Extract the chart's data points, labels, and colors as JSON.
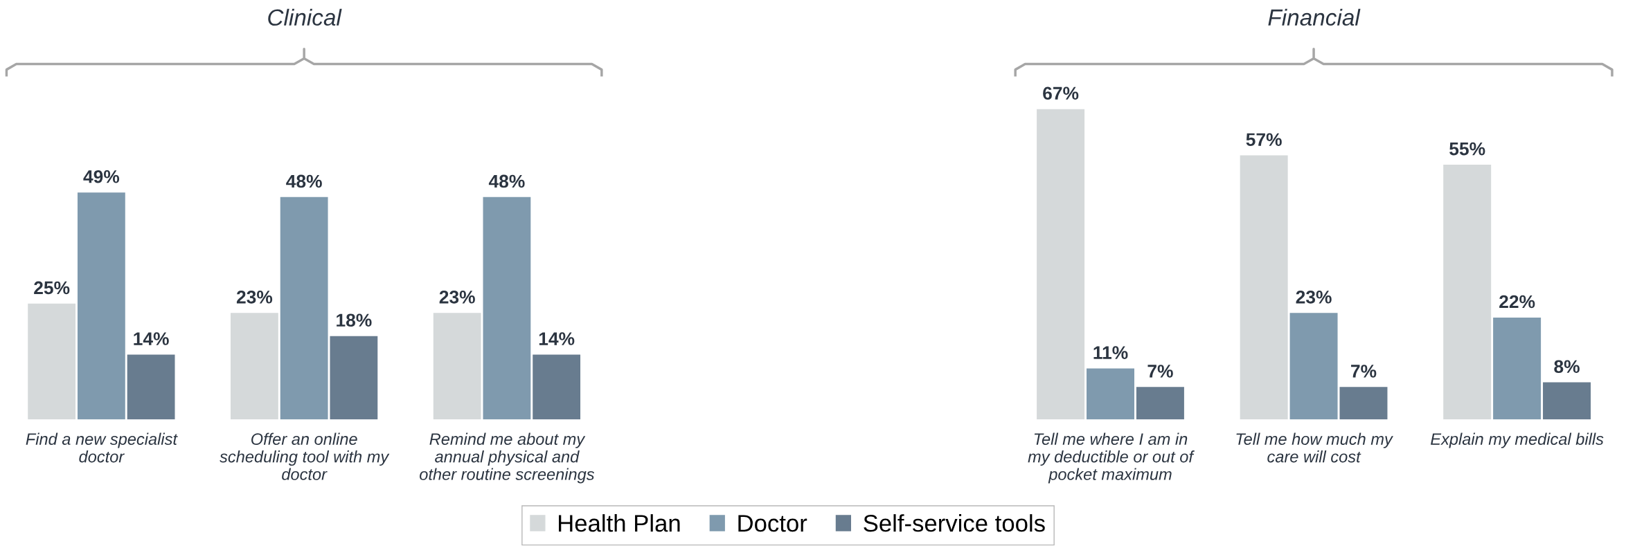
{
  "chart_data": [
    {
      "type": "bar",
      "title": "Clinical",
      "categories": [
        "Find a new specialist\ndoctor",
        "Offer an online\nscheduling tool with my\ndoctor",
        "Remind me about my\nannual physical and\nother routine screenings"
      ],
      "series": [
        {
          "name": "Health Plan",
          "color": "#d5d9da",
          "values": [
            25,
            23,
            23
          ],
          "value_labels": [
            "25%",
            "23%",
            "23%"
          ]
        },
        {
          "name": "Doctor",
          "color": "#7f9aae",
          "values": [
            49,
            48,
            48
          ],
          "value_labels": [
            "49%",
            "48%",
            "48%"
          ]
        },
        {
          "name": "Self-service tools",
          "color": "#687c8f",
          "values": [
            14,
            18,
            14
          ],
          "value_labels": [
            "14%",
            "18%",
            "14%"
          ]
        }
      ],
      "legend": "bottom",
      "tick_labels": "x"
    },
    {
      "type": "bar",
      "title": "Financial",
      "categories": [
        "Tell me where I am in\nmy deductible or out of\npocket maximum",
        "Tell me how much my\ncare will cost",
        "Explain my medical bills"
      ],
      "series": [
        {
          "name": "Health Plan",
          "color": "#d5d9da",
          "values": [
            67,
            57,
            55
          ],
          "value_labels": [
            "67%",
            "57%",
            "55%"
          ]
        },
        {
          "name": "Doctor",
          "color": "#7f9aae",
          "values": [
            11,
            23,
            22
          ],
          "value_labels": [
            "11%",
            "23%",
            "22%"
          ]
        },
        {
          "name": "Self-service tools",
          "color": "#687c8f",
          "values": [
            7,
            7,
            8
          ],
          "value_labels": [
            "7%",
            "7%",
            "8%"
          ]
        }
      ],
      "legend": "bottom",
      "tick_labels": "x"
    }
  ]
}
